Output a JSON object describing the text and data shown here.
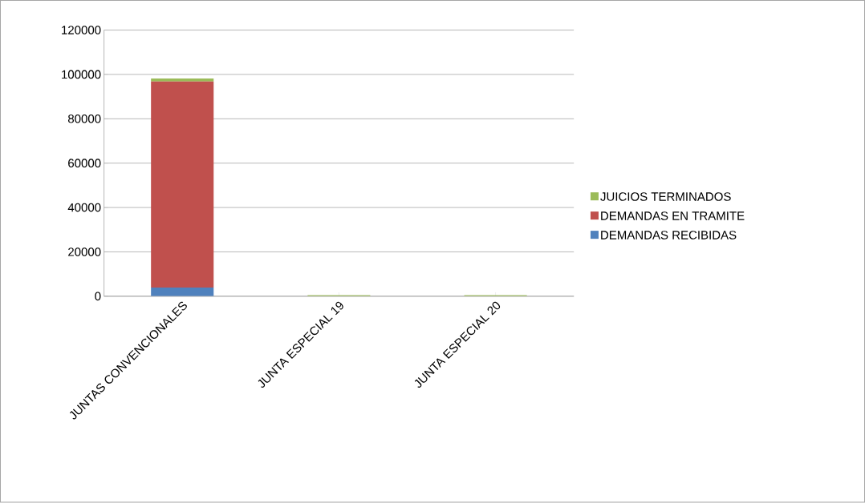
{
  "chart_data": {
    "type": "bar",
    "stacked": true,
    "categories": [
      "JUNTAS CONVENCIONALES",
      "JUNTA ESPECIAL 19",
      "JUNTA ESPECIAL 20"
    ],
    "series": [
      {
        "name": "DEMANDAS RECIBIDAS",
        "color": "#4f81bd",
        "values": [
          3900,
          0,
          0
        ]
      },
      {
        "name": "DEMANDAS EN TRAMITE",
        "color": "#c0504d",
        "values": [
          92900,
          0,
          0
        ]
      },
      {
        "name": "JUICIOS TERMINADOS",
        "color": "#9bbb59",
        "values": [
          1400,
          500,
          500
        ]
      }
    ],
    "ylim": [
      0,
      120000
    ],
    "yticks": [
      0,
      20000,
      40000,
      60000,
      80000,
      100000,
      120000
    ],
    "grid": "y",
    "legend": "right"
  }
}
